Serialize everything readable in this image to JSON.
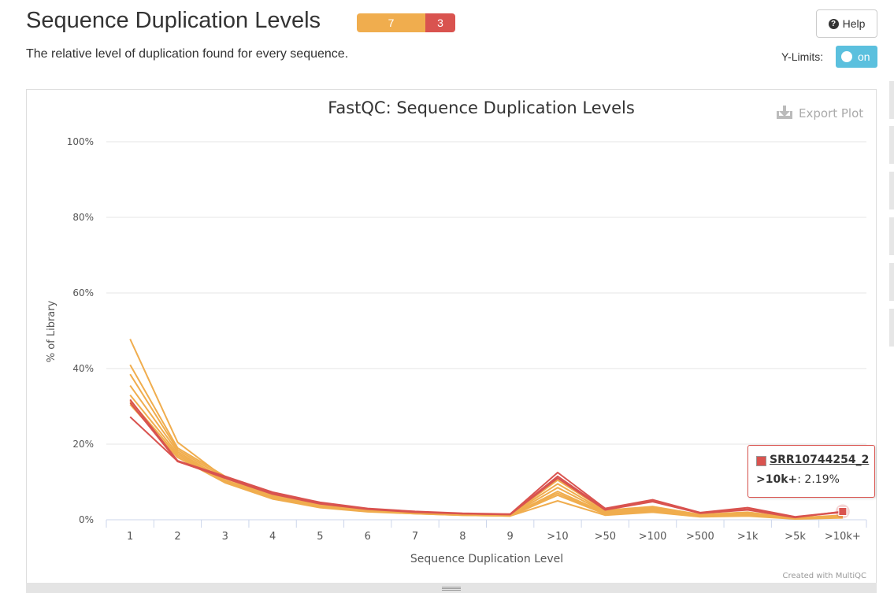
{
  "header": {
    "title": "Sequence Duplication Levels",
    "status_warn_count": "7",
    "status_fail_count": "3",
    "subtitle": "The relative level of duplication found for every sequence.",
    "help_label": "Help",
    "ylimits_label": "Y-Limits:",
    "ylimits_toggle": "on"
  },
  "colors": {
    "warn": "#f0ad4e",
    "fail": "#d9534f",
    "toggle": "#5bc0de"
  },
  "icons": {
    "help": "question-circle-icon",
    "export": "download-icon"
  },
  "export_label": "Export Plot",
  "credit": "Created with MultiQC",
  "tooltip": {
    "sample": "SRR10744254_2",
    "category": ">10k+",
    "value_text": ": 2.19%"
  },
  "chart_data": {
    "type": "line",
    "title": "FastQC: Sequence Duplication Levels",
    "xlabel": "Sequence Duplication Level",
    "ylabel": "% of Library",
    "ylim": [
      0,
      100
    ],
    "ytick_labels": [
      "0%",
      "20%",
      "40%",
      "60%",
      "80%",
      "100%"
    ],
    "ytick_values": [
      0,
      20,
      40,
      60,
      80,
      100
    ],
    "grid": true,
    "categories": [
      "1",
      "2",
      "3",
      "4",
      "5",
      "6",
      "7",
      "8",
      "9",
      ">10",
      ">50",
      ">100",
      ">500",
      ">1k",
      ">5k",
      ">10k+"
    ],
    "series": [
      {
        "color": "#f0ad4e",
        "values": [
          47.8,
          20.5,
          11.0,
          6.5,
          3.8,
          2.6,
          2.0,
          1.5,
          1.3,
          9.5,
          2.2,
          3.3,
          1.3,
          1.5,
          0.4,
          0.9
        ]
      },
      {
        "color": "#f0ad4e",
        "values": [
          41.0,
          19.0,
          11.5,
          6.8,
          4.0,
          2.7,
          2.0,
          1.5,
          1.3,
          10.5,
          2.5,
          3.5,
          1.4,
          2.0,
          0.5,
          1.2
        ]
      },
      {
        "color": "#f0ad4e",
        "values": [
          38.5,
          18.5,
          11.0,
          6.2,
          3.6,
          2.5,
          1.9,
          1.4,
          1.2,
          8.5,
          2.0,
          3.0,
          1.2,
          1.6,
          0.4,
          1.0
        ]
      },
      {
        "color": "#f0ad4e",
        "values": [
          35.5,
          18.0,
          10.5,
          6.0,
          3.5,
          2.4,
          1.8,
          1.3,
          1.1,
          7.5,
          1.8,
          2.8,
          1.1,
          1.4,
          0.3,
          0.8
        ]
      },
      {
        "color": "#f0ad4e",
        "values": [
          33.0,
          17.5,
          10.2,
          5.8,
          3.4,
          2.3,
          1.7,
          1.3,
          1.1,
          7.0,
          1.6,
          2.5,
          1.0,
          1.2,
          0.3,
          0.7
        ]
      },
      {
        "color": "#f0ad4e",
        "values": [
          31.5,
          17.0,
          10.0,
          5.6,
          3.3,
          2.2,
          1.6,
          1.2,
          1.0,
          6.5,
          1.5,
          2.3,
          0.9,
          1.1,
          0.3,
          0.6
        ]
      },
      {
        "color": "#f0ad4e",
        "values": [
          30.5,
          16.5,
          9.8,
          5.5,
          3.2,
          2.1,
          1.6,
          1.2,
          1.0,
          5.0,
          1.2,
          2.0,
          0.8,
          1.0,
          0.2,
          0.5
        ]
      },
      {
        "color": "#d9534f",
        "values": [
          31.8,
          15.6,
          11.5,
          7.3,
          4.6,
          3.0,
          2.2,
          1.7,
          1.5,
          12.5,
          3.0,
          5.3,
          1.9,
          3.2,
          0.8,
          2.1
        ]
      },
      {
        "color": "#d9534f",
        "values": [
          31.0,
          15.4,
          11.2,
          7.0,
          4.4,
          2.9,
          2.1,
          1.6,
          1.4,
          11.5,
          2.8,
          5.0,
          1.8,
          2.8,
          0.7,
          2.0
        ]
      },
      {
        "name": "SRR10744254_2",
        "color": "#d9534f",
        "values": [
          27.2,
          15.5,
          11.0,
          6.8,
          4.2,
          2.8,
          2.0,
          1.6,
          1.4,
          11.0,
          2.6,
          4.8,
          1.7,
          2.6,
          0.6,
          2.19
        ]
      }
    ]
  }
}
